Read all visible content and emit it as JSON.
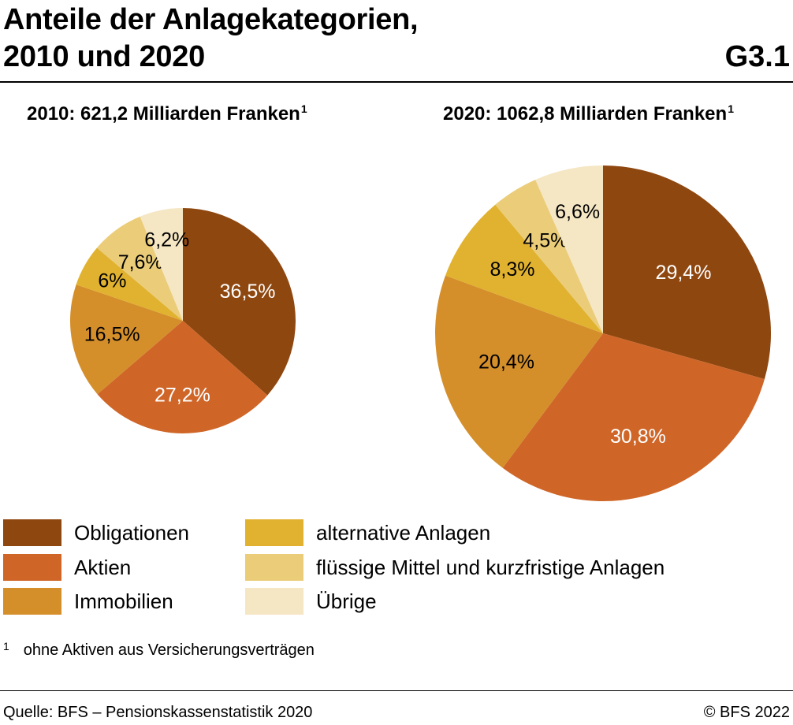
{
  "header": {
    "title_line1": "Anteile der Anlagekategorien,",
    "title_line2": "2010 und 2020",
    "code": "G3.1"
  },
  "chart_data": [
    {
      "type": "pie",
      "title": "2010: 621,2 Milliarden Franken",
      "title_footnote": "1",
      "categories": [
        "Obligationen",
        "Aktien",
        "Immobilien",
        "alternative Anlagen",
        "flüssige Mittel und kurzfristige Anlagen",
        "Übrige"
      ],
      "values": [
        36.5,
        27.2,
        16.5,
        6,
        7.6,
        6.2
      ],
      "labels": [
        "36,5%",
        "27,2%",
        "16,5%",
        "6%",
        "7,6%",
        "6,2%"
      ],
      "total": 621.2
    },
    {
      "type": "pie",
      "title": "2020: 1062,8 Milliarden Franken",
      "title_footnote": "1",
      "categories": [
        "Obligationen",
        "Aktien",
        "Immobilien",
        "alternative Anlagen",
        "flüssige Mittel und kurzfristige Anlagen",
        "Übrige"
      ],
      "values": [
        29.4,
        30.8,
        20.4,
        8.3,
        4.5,
        6.6
      ],
      "labels": [
        "29,4%",
        "30,8%",
        "20,4%",
        "8,3%",
        "4,5%",
        "6,6%"
      ],
      "total": 1062.8
    }
  ],
  "legend": [
    {
      "label": "Obligationen",
      "color": "#8f4710"
    },
    {
      "label": "Aktien",
      "color": "#cf6628"
    },
    {
      "label": "Immobilien",
      "color": "#d48f2b"
    },
    {
      "label": "alternative Anlagen",
      "color": "#e1b22f"
    },
    {
      "label": "flüssige Mittel und kurzfristige Anlagen",
      "color": "#ebcd79"
    },
    {
      "label": "Übrige",
      "color": "#f5e6c4"
    }
  ],
  "label_colors": [
    "#ffffff",
    "#ffffff",
    "#000000",
    "#000000",
    "#000000",
    "#000000"
  ],
  "footnote": {
    "mark": "1",
    "text": "ohne Aktiven aus Versicherungsverträgen"
  },
  "footer": {
    "source": "Quelle: BFS – Pensionskassenstatistik 2020",
    "copyright": "© BFS 2022"
  }
}
